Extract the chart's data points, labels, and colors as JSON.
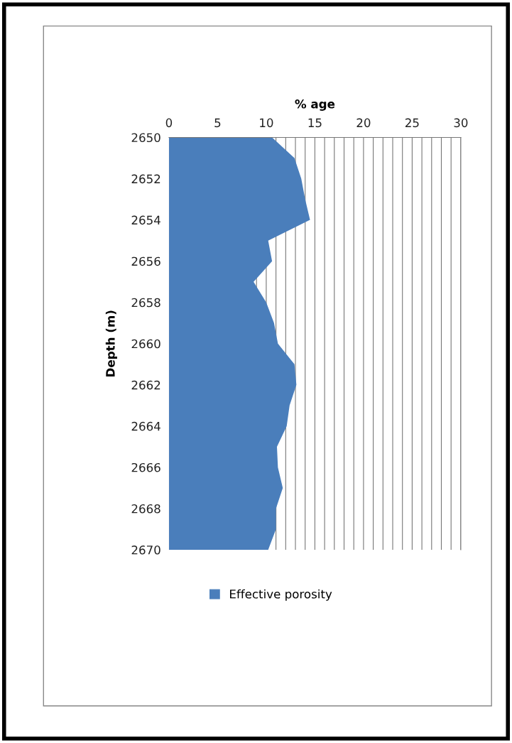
{
  "chart_data": {
    "type": "area",
    "orientation": "horizontal",
    "xlabel": "% age",
    "ylabel": "Depth (m)",
    "x": [
      2650,
      2651,
      2652,
      2653,
      2654,
      2655,
      2656,
      2657,
      2658,
      2659,
      2660,
      2661,
      2662,
      2663,
      2664,
      2665,
      2666,
      2667,
      2668,
      2669,
      2670
    ],
    "series": [
      {
        "name": "Effective porosity",
        "color": "#4a7ebb",
        "values": [
          10.6,
          12.9,
          13.6,
          14.0,
          14.5,
          10.2,
          10.6,
          8.7,
          10.0,
          10.8,
          11.2,
          12.9,
          13.1,
          12.4,
          12.1,
          11.1,
          11.2,
          11.7,
          11.0,
          11.0,
          10.2
        ]
      }
    ],
    "xlim": [
      0,
      30
    ],
    "xticks": [
      0,
      5,
      {
        "value": 9,
        "label": null
      },
      10,
      {
        "value": 11,
        "label": null
      },
      {
        "value": 12,
        "label": null
      },
      {
        "value": 13,
        "label": null
      },
      {
        "value": 14,
        "label": null
      },
      15,
      {
        "value": 16,
        "label": null
      },
      {
        "value": 17,
        "label": null
      },
      {
        "value": 18,
        "label": null
      },
      {
        "value": 19,
        "label": null
      },
      20,
      {
        "value": 21,
        "label": null
      },
      {
        "value": 22,
        "label": null
      },
      {
        "value": 23,
        "label": null
      },
      {
        "value": 24,
        "label": null
      },
      25,
      {
        "value": 26,
        "label": null
      },
      {
        "value": 27,
        "label": null
      },
      {
        "value": 28,
        "label": null
      },
      {
        "value": 29,
        "label": null
      },
      30
    ],
    "ylim": [
      2670,
      2650
    ],
    "yticks": [
      2650,
      2652,
      2654,
      2656,
      2658,
      2660,
      2662,
      2664,
      2666,
      2668,
      2670
    ],
    "grid": "x",
    "legend": "bottom"
  }
}
